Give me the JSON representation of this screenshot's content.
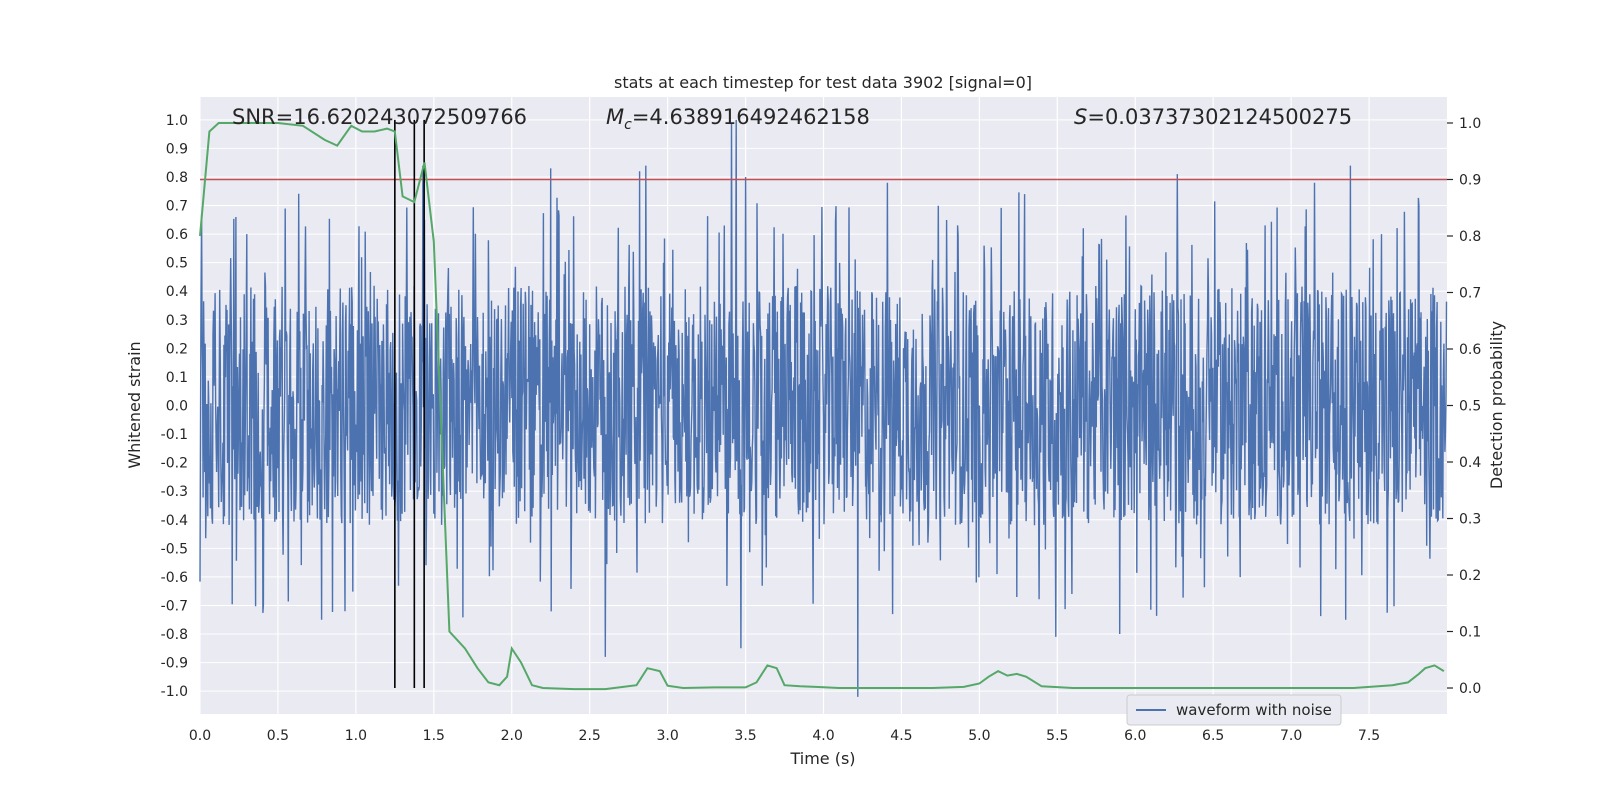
{
  "chart_data": {
    "type": "line",
    "title": "stats at each timestep for test data 3902 [signal=0]",
    "xlabel": "Time (s)",
    "ylabel_left": "Whitened strain",
    "ylabel_right": "Detection probability",
    "xlim": [
      0.0,
      8.0
    ],
    "ylim_left": [
      -1.08,
      1.08
    ],
    "ylim_right": [
      -0.046,
      1.046
    ],
    "x_ticks": [
      "0.0",
      "0.5",
      "1.0",
      "1.5",
      "2.0",
      "2.5",
      "3.0",
      "3.5",
      "4.0",
      "4.5",
      "5.0",
      "5.5",
      "6.0",
      "6.5",
      "7.0",
      "7.5"
    ],
    "y_ticks_left": [
      "1.0",
      "0.9",
      "0.8",
      "0.7",
      "0.6",
      "0.5",
      "0.4",
      "0.3",
      "0.2",
      "0.1",
      "0.0",
      "-0.1",
      "-0.2",
      "-0.3",
      "-0.4",
      "-0.5",
      "-0.6",
      "-0.7",
      "-0.8",
      "-0.9",
      "-1.0"
    ],
    "y_ticks_right": [
      "1.0",
      "0.9",
      "0.8",
      "0.7",
      "0.6",
      "0.5",
      "0.4",
      "0.3",
      "0.2",
      "0.1",
      "0.0"
    ],
    "annotations": {
      "snr": "SNR=16.620243072509766",
      "mc_symbol": "M",
      "mc_sub": "c",
      "mc_value": "=4.638916492462158",
      "s_symbol": "S",
      "s_value": "=0.03737302124500275"
    },
    "legend": {
      "label": "waveform with noise",
      "position": "lower-right"
    },
    "threshold_probability": 0.9,
    "event_markers_s": [
      1.25,
      1.375,
      1.438
    ],
    "waveform": {
      "name": "waveform with noise",
      "color": "#4c72b0",
      "duration_s": 8.0,
      "samples": 2400,
      "envelope": 0.42,
      "peaks": [
        {
          "t": 0.23,
          "y": 0.66
        },
        {
          "t": 0.3,
          "y": 0.6
        },
        {
          "t": 0.78,
          "y": -0.75
        },
        {
          "t": 0.93,
          "y": -0.72
        },
        {
          "t": 1.43,
          "y": 0.84
        },
        {
          "t": 2.25,
          "y": 0.83
        },
        {
          "t": 2.6,
          "y": -0.88
        },
        {
          "t": 2.82,
          "y": 0.82
        },
        {
          "t": 2.86,
          "y": 0.84
        },
        {
          "t": 3.41,
          "y": 0.99
        },
        {
          "t": 3.44,
          "y": 1.0
        },
        {
          "t": 3.47,
          "y": -0.85
        },
        {
          "t": 3.5,
          "y": 0.8
        },
        {
          "t": 4.22,
          "y": -1.02
        },
        {
          "t": 4.41,
          "y": 0.78
        },
        {
          "t": 5.29,
          "y": 0.74
        },
        {
          "t": 5.49,
          "y": -0.81
        },
        {
          "t": 5.9,
          "y": -0.8
        },
        {
          "t": 6.27,
          "y": 0.81
        },
        {
          "t": 7.15,
          "y": 0.78
        },
        {
          "t": 7.38,
          "y": 0.84
        },
        {
          "t": 7.35,
          "y": -0.75
        },
        {
          "t": 7.58,
          "y": 0.6
        }
      ]
    },
    "probability": {
      "name": "detection probability",
      "color": "#55a868",
      "x": [
        0.0,
        0.06,
        0.12,
        0.25,
        0.5,
        0.66,
        0.8,
        0.88,
        0.97,
        1.04,
        1.12,
        1.2,
        1.25,
        1.3,
        1.375,
        1.44,
        1.5,
        1.6,
        1.7,
        1.78,
        1.85,
        1.92,
        1.97,
        2.0,
        2.06,
        2.13,
        2.2,
        2.4,
        2.6,
        2.8,
        2.87,
        2.95,
        3.0,
        3.1,
        3.3,
        3.5,
        3.57,
        3.64,
        3.7,
        3.75,
        3.85,
        3.95,
        4.1,
        4.3,
        4.5,
        4.7,
        4.9,
        5.0,
        5.06,
        5.12,
        5.18,
        5.24,
        5.3,
        5.4,
        5.6,
        6.0,
        6.3,
        6.5,
        7.0,
        7.4,
        7.65,
        7.75,
        7.82,
        7.86,
        7.92,
        7.98
      ],
      "y": [
        0.8,
        0.985,
        1.0,
        1.0,
        1.0,
        0.995,
        0.97,
        0.96,
        0.995,
        0.985,
        0.985,
        0.99,
        0.985,
        0.87,
        0.86,
        0.93,
        0.79,
        0.1,
        0.07,
        0.035,
        0.01,
        0.005,
        0.02,
        0.07,
        0.045,
        0.005,
        0.0,
        -0.002,
        -0.002,
        0.005,
        0.035,
        0.03,
        0.004,
        0.0,
        0.001,
        0.001,
        0.01,
        0.04,
        0.035,
        0.005,
        0.003,
        0.002,
        0.0,
        0.0,
        0.0,
        0.0,
        0.002,
        0.008,
        0.02,
        0.03,
        0.022,
        0.025,
        0.02,
        0.003,
        0.0,
        0.0,
        0.0,
        0.0,
        0.0,
        0.0,
        0.005,
        0.01,
        0.025,
        0.035,
        0.04,
        0.03
      ]
    }
  }
}
